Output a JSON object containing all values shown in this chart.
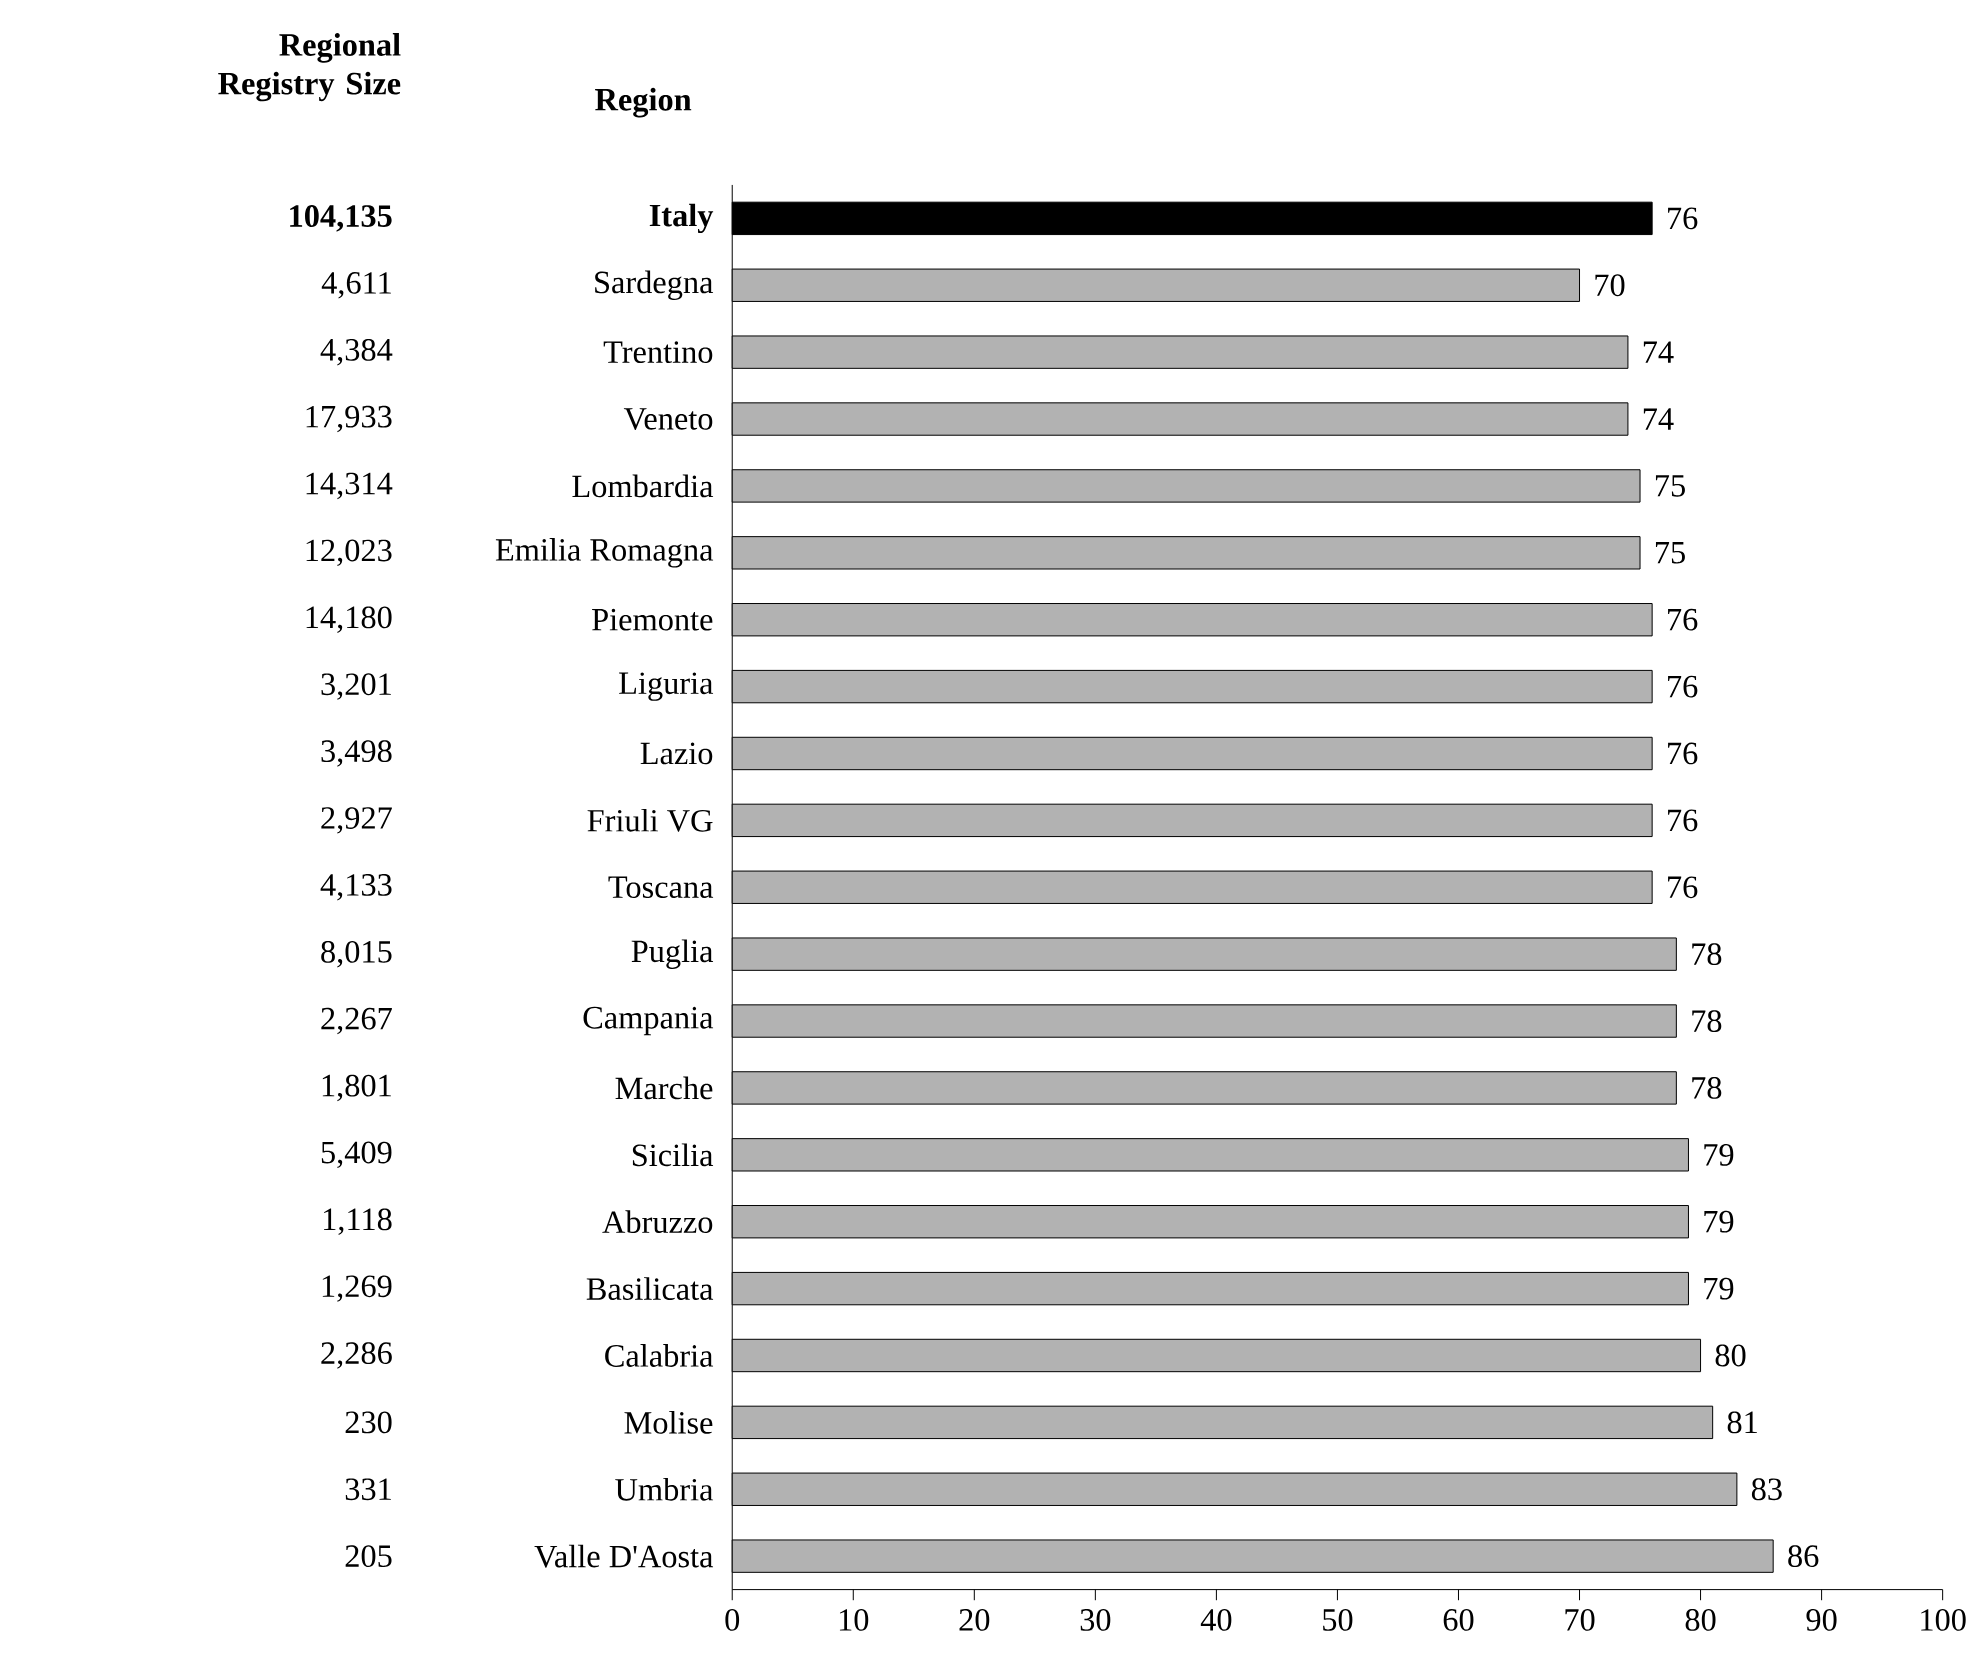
{
  "chart_data": {
    "type": "bar",
    "orientation": "horizontal",
    "ylabel": "Region",
    "categories": [
      "**Italy**",
      "Sardegna",
      "Trentino",
      "Veneto",
      "Lombardia",
      "Emilia Romagna",
      "Piemonte",
      "Liguria",
      "Lazio",
      "Friuli VG",
      "Toscana",
      "Puglia",
      "Campania",
      "Marche",
      "Sicilia",
      "Abruzzo",
      "Basilicata",
      "Calabria",
      "Molise",
      "Umbria",
      "Valle D'Aosta"
    ],
    "values": [
      76,
      70,
      74,
      74,
      75,
      75,
      76,
      76,
      76,
      76,
      76,
      78,
      78,
      78,
      79,
      79,
      79,
      80,
      81,
      83,
      86
    ],
    "colors": [
      "#000000",
      "#b2b2b2",
      "#b2b2b2",
      "#b2b2b2",
      "#b2b2b2",
      "#b2b2b2",
      "#b2b2b2",
      "#b2b2b2",
      "#b2b2b2",
      "#b2b2b2",
      "#b2b2b2",
      "#b2b2b2",
      "#b2b2b2",
      "#b2b2b2",
      "#b2b2b2",
      "#b2b2b2",
      "#b2b2b2",
      "#b2b2b2",
      "#b2b2b2",
      "#b2b2b2",
      "#b2b2b2"
    ],
    "data_labels": true,
    "xlim": [
      0,
      100
    ],
    "xticks": [
      0,
      10,
      20,
      30,
      40,
      50,
      60,
      70,
      80,
      90,
      100
    ],
    "annotations": [
      "Regional Registry Size",
      "**104,135**",
      "4,611",
      "4,384",
      "17,933",
      "14,314",
      "12,023",
      "14,180",
      "3,201",
      "3,498",
      "2,927",
      "4,133",
      "8,015",
      "2,267",
      "1,801",
      "5,409",
      "1,118",
      "1,269",
      "2,286",
      "230",
      "331",
      "205"
    ]
  }
}
